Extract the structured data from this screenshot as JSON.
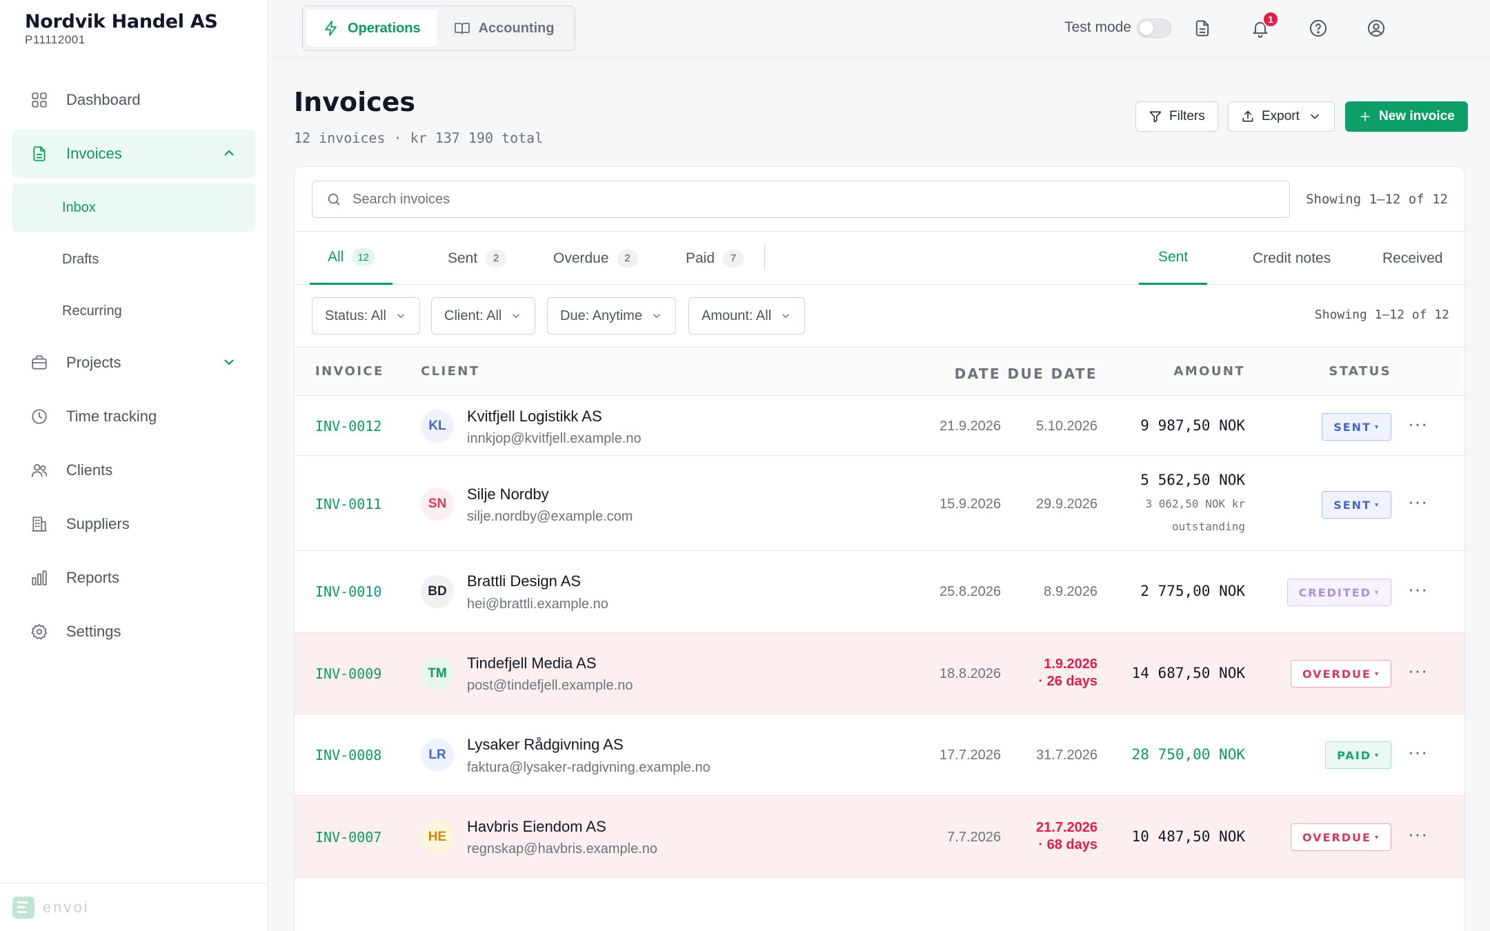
{
  "org": {
    "name": "Nordvik Handel AS",
    "id": "P11112001"
  },
  "sidebar": {
    "items": [
      {
        "label": "Dashboard"
      },
      {
        "label": "Invoices"
      },
      {
        "label": "Projects"
      },
      {
        "label": "Time tracking"
      },
      {
        "label": "Clients"
      },
      {
        "label": "Suppliers"
      },
      {
        "label": "Reports"
      },
      {
        "label": "Settings"
      }
    ],
    "invoice_sub": [
      {
        "label": "Inbox"
      },
      {
        "label": "Drafts"
      },
      {
        "label": "Recurring"
      }
    ],
    "brand": "envoi"
  },
  "topbar": {
    "operations_label": "Operations",
    "accounting_label": "Accounting",
    "test_mode_label": "Test mode",
    "notification_count": "1"
  },
  "page": {
    "title": "Invoices",
    "summary": "12 invoices · kr 137 190 total",
    "filters_label": "Filters",
    "export_label": "Export",
    "new_invoice_label": "New invoice"
  },
  "search": {
    "placeholder": "Search invoices",
    "showing": "Showing 1–12 of 12"
  },
  "tabs": {
    "status": [
      {
        "label": "All",
        "count": "12"
      },
      {
        "label": "Sent",
        "count": "2"
      },
      {
        "label": "Overdue",
        "count": "2"
      },
      {
        "label": "Paid",
        "count": "7"
      }
    ],
    "type": [
      {
        "label": "Sent"
      },
      {
        "label": "Credit notes"
      },
      {
        "label": "Received"
      }
    ]
  },
  "filters": {
    "status": "Status: All",
    "client": "Client: All",
    "due": "Due: Anytime",
    "amount": "Amount: All",
    "showing": "Showing 1–12 of 12"
  },
  "table": {
    "headers": {
      "invoice": "INVOICE",
      "client": "CLIENT",
      "date": "DATE",
      "due_date": "DUE DATE",
      "amount": "AMOUNT",
      "status": "STATUS"
    },
    "rows": [
      {
        "id": "INV-0012",
        "initials": "KL",
        "client": "Kvitfjell Logistikk AS",
        "email": "innkjop@kvitfjell.example.no",
        "date": "21.9.2026",
        "due": "5.10.2026",
        "due_note": "",
        "amount": "9 987,50 NOK",
        "outstanding_1": "",
        "outstanding_2": "",
        "status": "SENT"
      },
      {
        "id": "INV-0011",
        "initials": "SN",
        "client": "Silje Nordby",
        "email": "silje.nordby@example.com",
        "date": "15.9.2026",
        "due": "29.9.2026",
        "due_note": "",
        "amount": "5 562,50 NOK",
        "outstanding_1": "3 062,50 NOK kr",
        "outstanding_2": "outstanding",
        "status": "SENT"
      },
      {
        "id": "INV-0010",
        "initials": "BD",
        "client": "Brattli Design AS",
        "email": "hei@brattli.example.no",
        "date": "25.8.2026",
        "due": "8.9.2026",
        "due_note": "",
        "amount": "2 775,00 NOK",
        "outstanding_1": "",
        "outstanding_2": "",
        "status": "CREDITED"
      },
      {
        "id": "INV-0009",
        "initials": "TM",
        "client": "Tindefjell Media AS",
        "email": "post@tindefjell.example.no",
        "date": "18.8.2026",
        "due": "1.9.2026",
        "due_note": "· 26 days",
        "amount": "14 687,50 NOK",
        "outstanding_1": "",
        "outstanding_2": "",
        "status": "OVERDUE"
      },
      {
        "id": "INV-0008",
        "initials": "LR",
        "client": "Lysaker Rådgivning AS",
        "email": "faktura@lysaker-radgivning.example.no",
        "date": "17.7.2026",
        "due": "31.7.2026",
        "due_note": "",
        "amount": "28 750,00 NOK",
        "outstanding_1": "",
        "outstanding_2": "",
        "status": "PAID"
      },
      {
        "id": "INV-0007",
        "initials": "HE",
        "client": "Havbris Eiendom AS",
        "email": "regnskap@havbris.example.no",
        "date": "7.7.2026",
        "due": "21.7.2026",
        "due_note": "· 68 days",
        "amount": "10 487,50 NOK",
        "outstanding_1": "",
        "outstanding_2": "",
        "status": "OVERDUE"
      }
    ]
  },
  "colors": {
    "accent": "#0d9a63",
    "overdue": "#e11d48",
    "sent": "#4868c8",
    "credited": "#a991e0"
  }
}
